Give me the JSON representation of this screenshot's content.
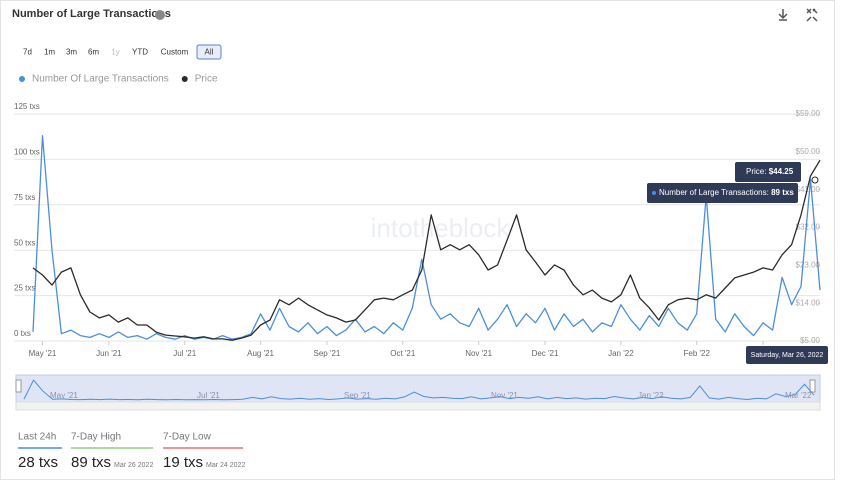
{
  "header": {
    "title": "Number of Large Transactions"
  },
  "ranges": [
    "7d",
    "1m",
    "3m",
    "6m",
    "1y",
    "YTD",
    "Custom",
    "All"
  ],
  "watermark": "intotheblock",
  "chart_data": {
    "type": "line",
    "categories": [
      null,
      "May '21",
      null,
      null,
      null,
      null,
      null,
      null,
      "Jun '21",
      null,
      null,
      null,
      null,
      null,
      null,
      null,
      "Jul '21",
      null,
      null,
      null,
      null,
      null,
      null,
      null,
      "Aug '21",
      null,
      null,
      null,
      null,
      null,
      null,
      "Sep '21",
      null,
      null,
      null,
      null,
      null,
      null,
      null,
      "Oct '21",
      null,
      null,
      null,
      null,
      null,
      null,
      null,
      "Nov '21",
      null,
      null,
      null,
      null,
      null,
      null,
      "Dec '21",
      null,
      null,
      null,
      null,
      null,
      null,
      null,
      "Jan '22",
      null,
      null,
      null,
      null,
      null,
      null,
      null,
      "Feb '22",
      null,
      null,
      null,
      null,
      null,
      null,
      "Mar '22",
      null,
      null,
      null,
      null,
      null,
      null
    ],
    "series": [
      {
        "name": "Number Of Large Transactions",
        "color": "#4a8fdc",
        "values": [
          5,
          113,
          50,
          4,
          6,
          3,
          2,
          4,
          2,
          5,
          2,
          3,
          1,
          4,
          2,
          1,
          3,
          1,
          2,
          1,
          3,
          1,
          2,
          4,
          15,
          6,
          18,
          8,
          5,
          10,
          4,
          8,
          3,
          6,
          12,
          5,
          8,
          4,
          10,
          6,
          18,
          45,
          20,
          12,
          15,
          10,
          8,
          18,
          6,
          12,
          20,
          8,
          15,
          10,
          18,
          6,
          15,
          8,
          12,
          5,
          10,
          8,
          20,
          12,
          6,
          14,
          8,
          18,
          10,
          6,
          15,
          80,
          12,
          5,
          15,
          8,
          3,
          10,
          6,
          35,
          20,
          30,
          89,
          28
        ]
      },
      {
        "name": "Price",
        "color": "#2b2b2b",
        "axis": "y2",
        "values": [
          22.4,
          20.7,
          18.3,
          21.4,
          22.4,
          16.0,
          11.9,
          10.5,
          11.2,
          9.5,
          10.5,
          8.8,
          8.8,
          7.1,
          6.4,
          6.2,
          6.0,
          5.7,
          6.0,
          5.5,
          5.5,
          5.2,
          5.7,
          6.4,
          8.8,
          10.0,
          14.8,
          13.6,
          15.2,
          13.6,
          12.4,
          11.2,
          10.5,
          9.5,
          10.0,
          12.4,
          14.8,
          15.2,
          14.8,
          16.0,
          17.1,
          21.9,
          35.0,
          26.7,
          27.9,
          26.7,
          27.9,
          25.5,
          21.9,
          23.1,
          29.0,
          35.0,
          26.7,
          23.8,
          20.7,
          23.1,
          21.9,
          18.3,
          16.0,
          17.1,
          15.2,
          14.3,
          16.0,
          20.7,
          15.2,
          12.9,
          10.0,
          13.6,
          14.8,
          15.2,
          14.8,
          16.0,
          15.2,
          17.6,
          20.0,
          20.7,
          21.4,
          22.4,
          21.9,
          25.5,
          27.9,
          35.0,
          44.25,
          48.0
        ]
      }
    ],
    "ylim": [
      0,
      125
    ],
    "yticks": [
      {
        "value": 0,
        "label": "0 txs"
      },
      {
        "value": 25,
        "label": "25 txs"
      },
      {
        "value": 50,
        "label": "50 txs"
      },
      {
        "value": 75,
        "label": "75 txs"
      },
      {
        "value": 100,
        "label": "100 txs"
      },
      {
        "value": 125,
        "label": "125 txs"
      }
    ],
    "y2lim": [
      5,
      59
    ],
    "y2ticks": [
      {
        "value": 5,
        "label": "$5.00"
      },
      {
        "value": 14,
        "label": "$14.00"
      },
      {
        "value": 23,
        "label": "$23.00"
      },
      {
        "value": 32,
        "label": "$32.00"
      },
      {
        "value": 41,
        "label": "$41.00"
      },
      {
        "value": 50,
        "label": "$50.00"
      },
      {
        "value": 59,
        "label": "$59.00"
      }
    ],
    "grid": true
  },
  "tooltip": {
    "price_label": "Price:",
    "price": "$44.25",
    "tx_label": "Number of Large Transactions:",
    "tx": "89 txs",
    "date": "Saturday, Mar 26, 2022"
  },
  "navigator": {
    "labels": [
      "May '21",
      "Jul '21",
      "Sep '21",
      "Nov '21",
      "Jan '22",
      "Mar '22"
    ]
  },
  "stats": [
    {
      "label": "Last 24h",
      "value": "28 txs"
    },
    {
      "label": "7-Day High",
      "value": "89 txs",
      "date": "Mar 26 2022"
    },
    {
      "label": "7-Day Low",
      "value": "19 txs",
      "date": "Mar 24 2022"
    }
  ]
}
